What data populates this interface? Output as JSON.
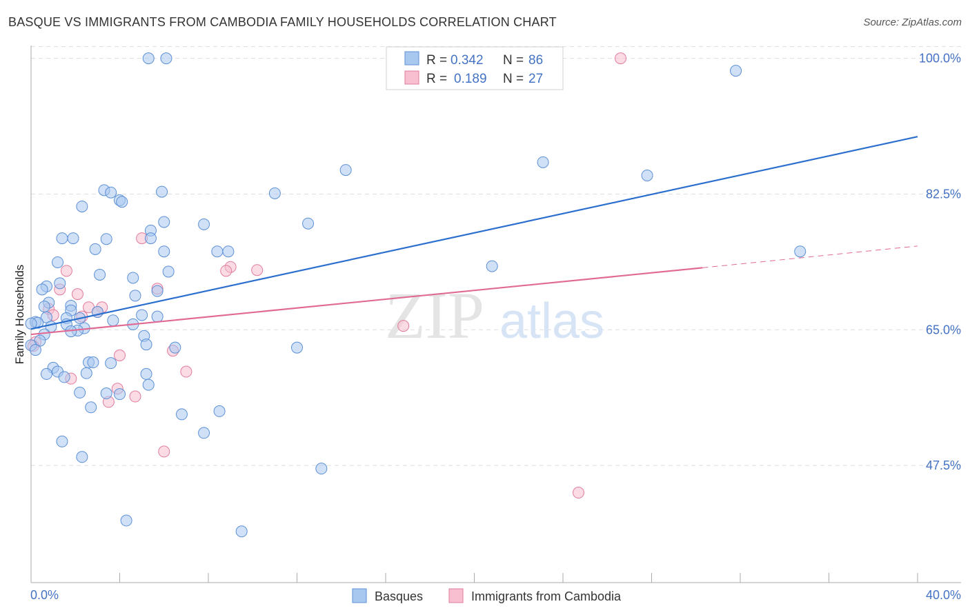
{
  "header": {
    "title": "BASQUE VS IMMIGRANTS FROM CAMBODIA FAMILY HOUSEHOLDS CORRELATION CHART",
    "source": "Source: ZipAtlas.com"
  },
  "watermark": {
    "zip": "ZIP",
    "atlas": "atlas"
  },
  "legend": {
    "rows": [
      {
        "r_label": "R =",
        "r_value": "0.342",
        "n_label": "N =",
        "n_value": "86"
      },
      {
        "r_label": "R =",
        "r_value": "0.189",
        "n_label": "N =",
        "n_value": "27"
      }
    ]
  },
  "bottom_legend": {
    "series1": "Basques",
    "series2": "Immigrants from Cambodia"
  },
  "colors": {
    "blue_fill": "#a9c8f0",
    "blue_stroke": "#5b8fd6",
    "blue_line": "#2b6fce",
    "pink_fill": "#f7bfd0",
    "pink_stroke": "#e07b9c",
    "pink_line": "#e06a93",
    "grid": "#dddddd",
    "tick_label": "#4472c4"
  },
  "chart_data": {
    "type": "scatter",
    "title": "BASQUE VS IMMIGRANTS FROM CAMBODIA FAMILY HOUSEHOLDS CORRELATION CHART",
    "xlabel": "",
    "ylabel": "Family Households",
    "xlim": [
      0,
      40
    ],
    "ylim": [
      32.4,
      101.3
    ],
    "x_tick_labels": [
      "0.0%",
      "40.0%"
    ],
    "y_ticks": [
      {
        "value": 47.5,
        "label": "47.5%"
      },
      {
        "value": 65.0,
        "label": "65.0%"
      },
      {
        "value": 82.5,
        "label": "82.5%"
      },
      {
        "value": 100.0,
        "label": "100.0%"
      }
    ],
    "grid": true,
    "legend_position": "top-center",
    "series": [
      {
        "name": "Basques",
        "color": "#a9c8f0",
        "r": 0.342,
        "n": 86,
        "trend": {
          "x": [
            0,
            40
          ],
          "y": [
            65.1,
            89.9
          ]
        },
        "points": [
          [
            5.3,
            100.0
          ],
          [
            6.1,
            100.0
          ],
          [
            31.8,
            98.4
          ],
          [
            14.2,
            85.6
          ],
          [
            23.1,
            86.6
          ],
          [
            27.8,
            84.9
          ],
          [
            3.3,
            83.0
          ],
          [
            5.9,
            82.8
          ],
          [
            3.6,
            82.7
          ],
          [
            11.0,
            82.6
          ],
          [
            4.0,
            81.7
          ],
          [
            4.1,
            81.5
          ],
          [
            2.3,
            80.9
          ],
          [
            6.0,
            78.9
          ],
          [
            7.8,
            78.6
          ],
          [
            12.5,
            78.7
          ],
          [
            1.4,
            76.8
          ],
          [
            1.9,
            76.8
          ],
          [
            3.4,
            76.7
          ],
          [
            5.4,
            77.8
          ],
          [
            5.4,
            76.8
          ],
          [
            2.9,
            75.4
          ],
          [
            6.0,
            75.1
          ],
          [
            8.4,
            75.1
          ],
          [
            8.9,
            75.1
          ],
          [
            34.7,
            75.1
          ],
          [
            1.2,
            73.7
          ],
          [
            20.8,
            73.2
          ],
          [
            6.2,
            72.5
          ],
          [
            3.1,
            72.1
          ],
          [
            4.6,
            71.7
          ],
          [
            1.3,
            71.0
          ],
          [
            0.7,
            70.6
          ],
          [
            0.5,
            70.2
          ],
          [
            5.7,
            70.0
          ],
          [
            4.7,
            69.4
          ],
          [
            0.8,
            68.5
          ],
          [
            0.6,
            68.0
          ],
          [
            1.8,
            68.1
          ],
          [
            1.8,
            67.5
          ],
          [
            3.0,
            67.3
          ],
          [
            5.0,
            66.9
          ],
          [
            5.7,
            66.7
          ],
          [
            1.6,
            66.5
          ],
          [
            2.2,
            66.5
          ],
          [
            0.7,
            66.6
          ],
          [
            0.2,
            66.0
          ],
          [
            0.3,
            65.9
          ],
          [
            0.0,
            65.8
          ],
          [
            1.6,
            65.7
          ],
          [
            4.6,
            65.7
          ],
          [
            0.9,
            65.4
          ],
          [
            2.4,
            65.2
          ],
          [
            2.1,
            64.9
          ],
          [
            1.8,
            64.8
          ],
          [
            0.6,
            64.4
          ],
          [
            5.1,
            64.2
          ],
          [
            0.4,
            63.6
          ],
          [
            5.2,
            63.1
          ],
          [
            12.0,
            62.7
          ],
          [
            6.5,
            62.7
          ],
          [
            2.6,
            60.8
          ],
          [
            2.8,
            60.8
          ],
          [
            3.6,
            60.7
          ],
          [
            1.0,
            60.1
          ],
          [
            1.2,
            59.6
          ],
          [
            0.7,
            59.3
          ],
          [
            5.2,
            59.3
          ],
          [
            1.5,
            58.9
          ],
          [
            2.5,
            59.4
          ],
          [
            5.3,
            57.9
          ],
          [
            2.2,
            56.9
          ],
          [
            3.4,
            56.8
          ],
          [
            4.0,
            56.7
          ],
          [
            2.7,
            55.0
          ],
          [
            8.5,
            54.5
          ],
          [
            6.8,
            54.1
          ],
          [
            7.8,
            51.7
          ],
          [
            1.4,
            50.6
          ],
          [
            2.3,
            48.6
          ],
          [
            13.1,
            47.1
          ],
          [
            4.3,
            40.4
          ],
          [
            9.5,
            39.0
          ],
          [
            0.0,
            63.0
          ],
          [
            0.2,
            62.4
          ],
          [
            3.7,
            66.2
          ]
        ]
      },
      {
        "name": "Immigrants from Cambodia",
        "color": "#f7bfd0",
        "r": 0.189,
        "n": 27,
        "trend": {
          "x": [
            0,
            30.3
          ],
          "y": [
            64.4,
            73.0
          ]
        },
        "trend_dashed": {
          "x": [
            30.3,
            40
          ],
          "y": [
            73.0,
            75.8
          ]
        },
        "points": [
          [
            26.6,
            100.0
          ],
          [
            5.0,
            76.8
          ],
          [
            1.6,
            72.6
          ],
          [
            9.0,
            73.1
          ],
          [
            8.8,
            72.6
          ],
          [
            10.2,
            72.7
          ],
          [
            1.3,
            70.2
          ],
          [
            5.7,
            70.3
          ],
          [
            2.1,
            69.6
          ],
          [
            0.8,
            67.7
          ],
          [
            1.0,
            66.9
          ],
          [
            2.6,
            67.9
          ],
          [
            3.2,
            67.9
          ],
          [
            3.0,
            67.3
          ],
          [
            2.3,
            66.7
          ],
          [
            16.8,
            65.5
          ],
          [
            0.2,
            63.4
          ],
          [
            6.4,
            62.3
          ],
          [
            4.0,
            61.7
          ],
          [
            1.8,
            58.7
          ],
          [
            7.0,
            59.6
          ],
          [
            3.9,
            57.4
          ],
          [
            4.7,
            56.4
          ],
          [
            3.5,
            55.7
          ],
          [
            6.0,
            49.3
          ],
          [
            24.7,
            44.0
          ],
          [
            0.1,
            62.9
          ]
        ]
      }
    ]
  }
}
